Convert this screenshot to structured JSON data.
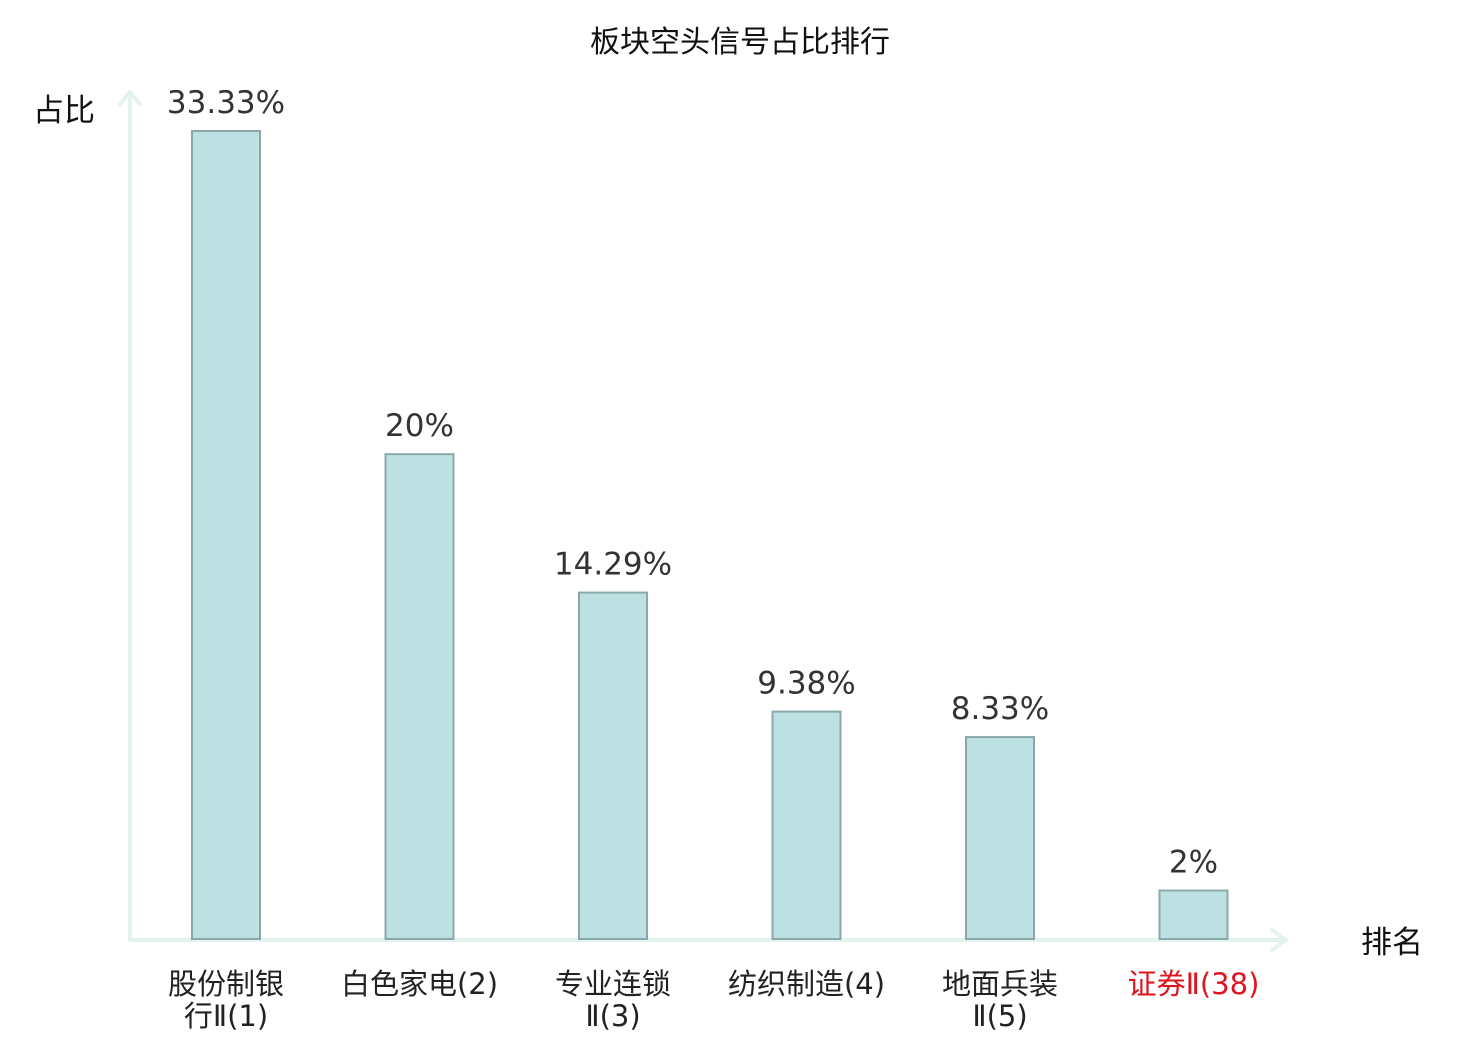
{
  "chart_data": {
    "type": "bar",
    "title": "板块空头信号占比排行",
    "ylabel": "占比",
    "xlabel": "排名",
    "categories": [
      [
        "股份制银",
        "行Ⅱ(1)"
      ],
      [
        "白色家电(2)"
      ],
      [
        "专业连锁",
        "Ⅱ(3)"
      ],
      [
        "纺织制造(4)"
      ],
      [
        "地面兵装",
        "Ⅱ(5)"
      ],
      [
        "证券Ⅱ(38)"
      ]
    ],
    "values": [
      33.33,
      20,
      14.29,
      9.38,
      8.33,
      2
    ],
    "value_labels": [
      "33.33%",
      "20%",
      "14.29%",
      "9.38%",
      "8.33%",
      "2%"
    ],
    "highlight_index": 5,
    "ylim": [
      0,
      33.33
    ],
    "grid": false,
    "legend": "none",
    "colors": {
      "bar_fill": "#bde0e2",
      "bar_stroke": "#8aa8aa",
      "axis": "#e3f3f0",
      "highlight_text": "#e0141e"
    }
  }
}
